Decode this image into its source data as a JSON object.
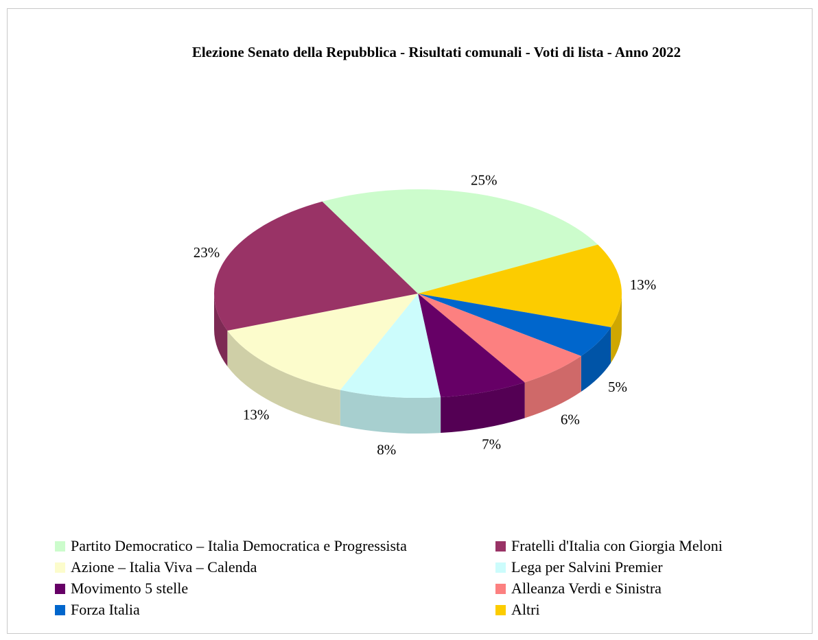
{
  "chart_data": {
    "type": "pie",
    "title": "Elezione Senato della Repubblica - Risultati comunali - Voti di lista - Anno 2022",
    "slices": [
      {
        "name": "Partito Democratico – Italia Democratica e Progressista",
        "value": 25,
        "label": "25%",
        "color": "#ccfccc"
      },
      {
        "name": "Altri",
        "value": 13,
        "label": "13%",
        "color": "#fccc00"
      },
      {
        "name": "Forza Italia",
        "value": 5,
        "label": "5%",
        "color": "#0066cc"
      },
      {
        "name": "Alleanza Verdi e Sinistra",
        "value": 6,
        "label": "6%",
        "color": "#fc8080"
      },
      {
        "name": "Movimento 5 stelle",
        "value": 7,
        "label": "7%",
        "color": "#660066"
      },
      {
        "name": "Lega per Salvini Premier",
        "value": 8,
        "label": "8%",
        "color": "#ccfcfc"
      },
      {
        "name": "Azione – Italia Viva – Calenda",
        "value": 13,
        "label": "13%",
        "color": "#fcfccc"
      },
      {
        "name": "Fratelli d'Italia con Giorgia Meloni",
        "value": 23,
        "label": "23%",
        "color": "#993366"
      }
    ],
    "legend": [
      {
        "name": "Partito Democratico – Italia Democratica e Progressista",
        "color": "#ccfccc"
      },
      {
        "name": "Fratelli d'Italia con Giorgia Meloni",
        "color": "#993366"
      },
      {
        "name": "Azione – Italia Viva – Calenda",
        "color": "#fcfccc"
      },
      {
        "name": "Lega per Salvini Premier",
        "color": "#ccfcfc"
      },
      {
        "name": "Movimento 5 stelle",
        "color": "#660066"
      },
      {
        "name": "Alleanza Verdi e Sinistra",
        "color": "#fc8080"
      },
      {
        "name": "Forza Italia",
        "color": "#0066cc"
      },
      {
        "name": "Altri",
        "color": "#fccc00"
      }
    ],
    "legend_placement": "bottom",
    "style": "3d"
  }
}
